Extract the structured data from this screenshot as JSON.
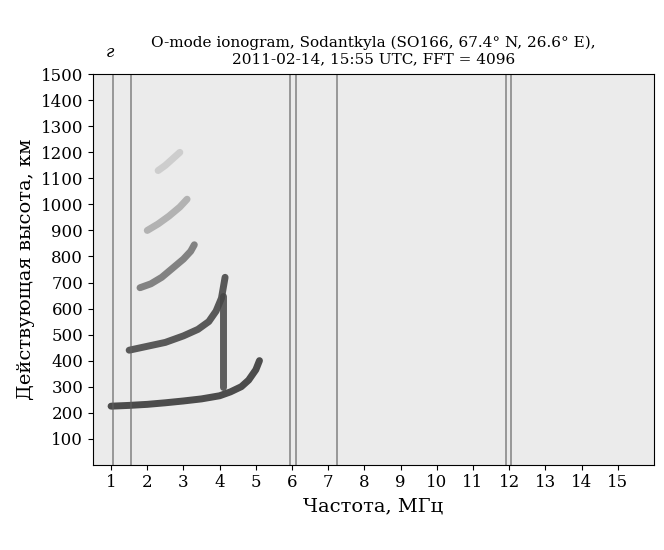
{
  "chart_data": {
    "type": "line",
    "title": "O-mode ionogram, Sodantkyla (SO166, 67.4° N, 26.6° E),\n2011-02-14, 15:55 UTC, FFT = 4096",
    "annotation": "г",
    "x_label": "Частота, МГц",
    "y_label": "Действующая высота, км",
    "xlim": [
      0.5,
      16
    ],
    "ylim": [
      0,
      1500
    ],
    "xticks": [
      1,
      2,
      3,
      4,
      5,
      6,
      7,
      8,
      9,
      10,
      11,
      12,
      13,
      14,
      15
    ],
    "yticks": [
      100,
      200,
      300,
      400,
      500,
      600,
      700,
      800,
      900,
      1000,
      1100,
      1200,
      1300,
      1400,
      1500
    ],
    "grid": false,
    "series": [
      {
        "type": "line",
        "color": "#303030",
        "x": [
          1.0,
          1.5,
          2.0,
          2.5,
          3.0,
          3.5,
          4.0,
          4.3,
          4.6,
          4.8,
          5.0,
          5.1
        ],
        "values": [
          225,
          228,
          232,
          238,
          245,
          253,
          265,
          280,
          300,
          325,
          365,
          400
        ]
      },
      {
        "type": "line",
        "color": "#404040",
        "x": [
          1.5,
          2.0,
          2.5,
          3.0,
          3.4,
          3.7,
          3.9,
          4.05,
          4.15
        ],
        "values": [
          440,
          455,
          470,
          495,
          520,
          550,
          590,
          640,
          720
        ]
      },
      {
        "type": "line",
        "color": "#454545",
        "x": [
          4.1,
          4.1
        ],
        "values": [
          300,
          650
        ]
      },
      {
        "type": "line",
        "color": "#707070",
        "x": [
          1.8,
          2.1,
          2.4,
          2.7,
          3.0,
          3.2,
          3.3
        ],
        "values": [
          680,
          695,
          720,
          755,
          790,
          820,
          845
        ]
      },
      {
        "type": "line",
        "color": "#a8a8a8",
        "x": [
          2.0,
          2.3,
          2.6,
          2.9,
          3.1
        ],
        "values": [
          900,
          925,
          955,
          990,
          1020
        ]
      },
      {
        "type": "line",
        "color": "#c8c8c8",
        "x": [
          2.3,
          2.5,
          2.7,
          2.9
        ],
        "values": [
          1130,
          1150,
          1175,
          1200
        ]
      },
      {
        "type": "vline",
        "color": "#606060",
        "x": [
          1.05,
          1.55,
          5.95,
          6.1,
          7.25,
          11.9,
          12.05
        ]
      }
    ]
  }
}
